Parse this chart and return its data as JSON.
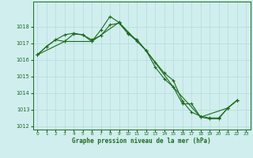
{
  "background_color": "#d0eeee",
  "grid_color": "#b8dede",
  "line_color": "#1a6b1a",
  "xlabel": "Graphe pression niveau de la mer (hPa)",
  "ylim": [
    1011.8,
    1019.5
  ],
  "xlim": [
    -0.5,
    23.5
  ],
  "yticks": [
    1012,
    1013,
    1014,
    1015,
    1016,
    1017,
    1018
  ],
  "xticks": [
    0,
    1,
    2,
    3,
    4,
    5,
    6,
    7,
    8,
    9,
    10,
    11,
    12,
    13,
    14,
    15,
    16,
    17,
    18,
    19,
    20,
    21,
    22,
    23
  ],
  "series": [
    {
      "x": [
        0,
        1,
        2,
        3,
        4,
        5,
        6,
        7,
        8,
        9,
        10,
        11,
        12,
        13,
        14,
        15,
        16,
        17,
        18,
        19,
        20,
        21,
        22
      ],
      "y": [
        1016.3,
        1016.8,
        1017.2,
        1017.1,
        1017.55,
        1017.5,
        1017.1,
        1017.8,
        1018.6,
        1018.25,
        1017.55,
        1017.2,
        1016.55,
        1015.55,
        1014.85,
        1014.35,
        1013.35,
        1013.35,
        1012.55,
        1012.45,
        1012.45,
        1013.1,
        1013.55
      ]
    },
    {
      "x": [
        0,
        1,
        2,
        3,
        4,
        5,
        6,
        7,
        8,
        9,
        10,
        11,
        12,
        13,
        14,
        15,
        16,
        17,
        18,
        19,
        20,
        21,
        22
      ],
      "y": [
        1016.3,
        1016.8,
        1017.2,
        1017.5,
        1017.6,
        1017.5,
        1017.2,
        1017.45,
        1018.1,
        1018.2,
        1017.6,
        1017.1,
        1016.55,
        1015.85,
        1015.2,
        1014.75,
        1013.5,
        1012.85,
        1012.6,
        1012.5,
        1012.5,
        1013.1,
        1013.55
      ]
    },
    {
      "x": [
        0,
        3,
        6,
        9,
        12,
        15,
        18,
        21,
        22
      ],
      "y": [
        1016.3,
        1017.1,
        1017.1,
        1018.25,
        1016.55,
        1014.35,
        1012.55,
        1013.1,
        1013.55
      ]
    }
  ]
}
